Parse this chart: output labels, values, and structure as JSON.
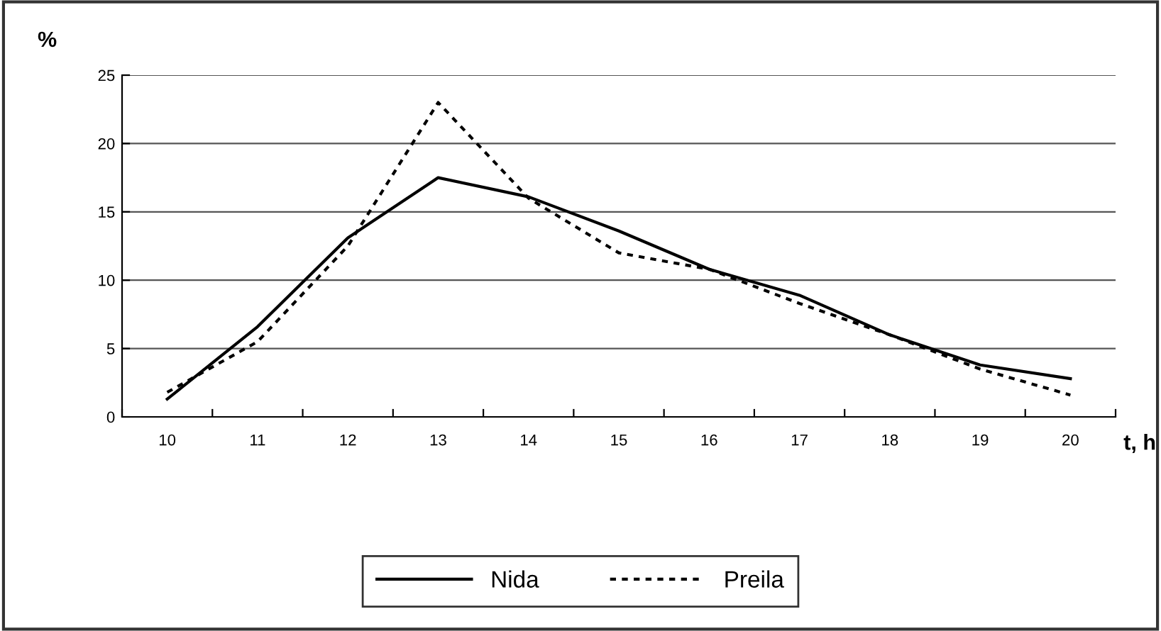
{
  "chart_data": {
    "type": "line",
    "xlabel": "t, h",
    "ylabel": "%",
    "categories": [
      "10",
      "11",
      "12",
      "13",
      "14",
      "15",
      "16",
      "17",
      "18",
      "19",
      "20"
    ],
    "series": [
      {
        "name": "Nida",
        "color": "#000000",
        "line_style": "solid",
        "values": [
          1.3,
          6.6,
          13.1,
          17.5,
          16.1,
          13.6,
          10.8,
          8.9,
          6.0,
          3.8,
          2.8
        ]
      },
      {
        "name": "Preila",
        "color": "#000000",
        "line_style": "dotted",
        "values": [
          1.8,
          5.5,
          12.5,
          23.0,
          16.0,
          12.0,
          10.8,
          8.3,
          6.0,
          3.5,
          1.6
        ]
      }
    ],
    "ylim": [
      0,
      25
    ],
    "yticks": [
      0,
      5,
      10,
      15,
      20,
      25
    ],
    "grid": "y",
    "legend": "bottom"
  }
}
